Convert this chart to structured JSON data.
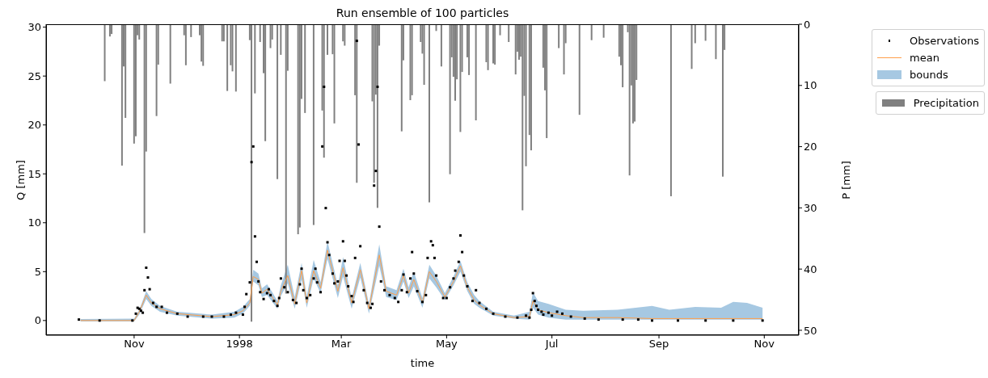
{
  "chart_data": {
    "type": "line",
    "title": "Run ensemble of 100 particles",
    "xlabel": "time",
    "ylabel": "Q [mm]",
    "y2label": "P [mm]",
    "xlim": [
      "1997-09-11",
      "1998-11-21"
    ],
    "xticks": [
      {
        "value": "1997-11-01",
        "label": "Nov"
      },
      {
        "value": "1998-01-01",
        "label": "1998"
      },
      {
        "value": "1998-03-01",
        "label": "Mar"
      },
      {
        "value": "1998-05-01",
        "label": "May"
      },
      {
        "value": "1998-07-01",
        "label": "Jul"
      },
      {
        "value": "1998-09-01",
        "label": "Sep"
      },
      {
        "value": "1998-11-01",
        "label": "Nov"
      }
    ],
    "ylim": [
      -1.5,
      30.3
    ],
    "yticks": [
      0,
      5,
      10,
      15,
      20,
      25,
      30
    ],
    "y2lim": [
      50.8,
      0
    ],
    "y2ticks": [
      0,
      10,
      20,
      30,
      40,
      50
    ],
    "grid": false,
    "legend": "right",
    "series": [
      {
        "type": "area",
        "name": "bounds",
        "color": "#a6c8e2"
      },
      {
        "name": "mean",
        "color": "#ff9f4a",
        "lower": [
          -0.1,
          -0.1,
          0.6,
          2.2,
          1.5,
          0.9,
          0.5,
          0.2,
          0.3,
          0.7,
          1.5,
          4.0,
          3.6,
          2.4,
          2.6,
          1.9,
          1.2,
          2.5,
          3.8,
          1.2,
          4.2,
          1.3,
          4.3,
          2.8,
          6.3,
          2.3,
          4.5,
          1.2,
          4.4,
          0.7,
          5.6,
          2.4,
          2.1,
          4.0,
          2.3,
          3.5,
          1.3,
          4.3,
          3.4,
          2.1,
          3.6,
          5.0,
          3.0,
          1.7,
          1.3,
          0.5,
          0.2,
          0.1,
          1.3,
          0.6,
          0.3,
          0.1,
          0.1,
          0.1,
          0.1,
          0.1,
          0.1,
          0.1,
          0.1,
          0.1,
          0.1
        ],
        "upper": [
          0.15,
          0.2,
          1.1,
          3.0,
          2.2,
          1.5,
          0.9,
          0.6,
          0.9,
          1.4,
          2.2,
          5.2,
          4.8,
          3.3,
          3.7,
          2.9,
          2.0,
          3.6,
          5.7,
          2.4,
          5.9,
          2.5,
          6.2,
          3.9,
          8.1,
          3.6,
          6.5,
          2.3,
          5.9,
          1.7,
          7.8,
          3.5,
          3.1,
          5.3,
          3.4,
          5.0,
          2.3,
          5.7,
          4.6,
          2.8,
          4.5,
          6.1,
          3.9,
          2.6,
          2.0,
          0.9,
          0.5,
          0.9,
          2.9,
          2.0,
          1.7,
          1.1,
          1.0,
          1.1,
          1.5,
          1.1,
          1.4,
          1.3,
          1.9,
          1.8,
          1.3
        ],
        "x": [
          "1997-10-01",
          "1997-11-01",
          "1997-11-04",
          "1997-11-08",
          "1997-11-11",
          "1997-11-16",
          "1997-11-26",
          "1997-12-16",
          "1997-12-29",
          "1998-01-03",
          "1998-01-07",
          "1998-01-09",
          "1998-01-12",
          "1998-01-14",
          "1998-01-17",
          "1998-01-20",
          "1998-01-23",
          "1998-01-25",
          "1998-01-29",
          "1998-02-02",
          "1998-02-06",
          "1998-02-09",
          "1998-02-13",
          "1998-02-17",
          "1998-02-21",
          "1998-02-27",
          "1998-03-02",
          "1998-03-07",
          "1998-03-12",
          "1998-03-17",
          "1998-03-23",
          "1998-03-27",
          "1998-04-02",
          "1998-04-06",
          "1998-04-09",
          "1998-04-12",
          "1998-04-17",
          "1998-04-21",
          "1998-04-25",
          "1998-04-30",
          "1998-05-05",
          "1998-05-09",
          "1998-05-13",
          "1998-05-17",
          "1998-05-20",
          "1998-05-28",
          "1998-06-09",
          "1998-06-18",
          "1998-06-20",
          "1998-06-23",
          "1998-06-29",
          "1998-07-09",
          "1998-07-19",
          "1998-08-08",
          "1998-08-28",
          "1998-09-07",
          "1998-09-22",
          "1998-10-07",
          "1998-10-14",
          "1998-10-22",
          "1998-10-31"
        ],
        "values": [
          0.0,
          0.0,
          0.9,
          2.6,
          1.8,
          1.2,
          0.7,
          0.4,
          0.6,
          1.0,
          1.8,
          4.5,
          4.2,
          2.8,
          3.2,
          2.4,
          1.6,
          3.0,
          4.6,
          1.7,
          5.1,
          1.8,
          5.1,
          3.3,
          7.2,
          3.0,
          5.4,
          1.8,
          5.2,
          1.2,
          6.7,
          3.0,
          2.6,
          4.6,
          2.8,
          4.2,
          1.8,
          5.0,
          4.0,
          2.4,
          4.0,
          5.6,
          3.4,
          2.1,
          1.6,
          0.7,
          0.3,
          0.4,
          2.0,
          1.1,
          0.8,
          0.5,
          0.3,
          0.3,
          0.2,
          0.2,
          0.2,
          0.2,
          0.2,
          0.2,
          0.2
        ]
      },
      {
        "type": "scatter",
        "name": "Observations",
        "color": "#000000",
        "marker": "square",
        "x": [
          "1997-09-30",
          "1997-10-12",
          "1997-10-31",
          "1997-11-02",
          "1997-11-03",
          "1997-11-04",
          "1997-11-05",
          "1997-11-06",
          "1997-11-07",
          "1997-11-08",
          "1997-11-09",
          "1997-11-10",
          "1997-11-12",
          "1997-11-14",
          "1997-11-17",
          "1997-11-20",
          "1997-11-26",
          "1997-12-02",
          "1997-12-11",
          "1997-12-16",
          "1997-12-23",
          "1997-12-27",
          "1997-12-30",
          "1998-01-03",
          "1998-01-04",
          "1998-01-05",
          "1998-01-07",
          "1998-01-08",
          "1998-01-09",
          "1998-01-10",
          "1998-01-11",
          "1998-01-12",
          "1998-01-13",
          "1998-01-15",
          "1998-01-17",
          "1998-01-18",
          "1998-01-19",
          "1998-01-21",
          "1998-01-23",
          "1998-01-24",
          "1998-01-25",
          "1998-01-27",
          "1998-01-29",
          "1998-02-01",
          "1998-02-03",
          "1998-02-05",
          "1998-02-06",
          "1998-02-07",
          "1998-02-09",
          "1998-02-11",
          "1998-02-13",
          "1998-02-14",
          "1998-02-15",
          "1998-02-17",
          "1998-02-18",
          "1998-02-19",
          "1998-02-20",
          "1998-02-21",
          "1998-02-22",
          "1998-02-24",
          "1998-02-25",
          "1998-02-27",
          "1998-02-28",
          "1998-03-02",
          "1998-03-03",
          "1998-03-04",
          "1998-03-05",
          "1998-03-07",
          "1998-03-08",
          "1998-03-09",
          "1998-03-10",
          "1998-03-11",
          "1998-03-12",
          "1998-03-14",
          "1998-03-16",
          "1998-03-18",
          "1998-03-19",
          "1998-03-20",
          "1998-03-21",
          "1998-03-22",
          "1998-03-23",
          "1998-03-24",
          "1998-03-26",
          "1998-03-29",
          "1998-04-01",
          "1998-04-03",
          "1998-04-05",
          "1998-04-06",
          "1998-04-08",
          "1998-04-10",
          "1998-04-11",
          "1998-04-12",
          "1998-04-14",
          "1998-04-17",
          "1998-04-19",
          "1998-04-20",
          "1998-04-22",
          "1998-04-23",
          "1998-04-24",
          "1998-04-25",
          "1998-04-29",
          "1998-05-01",
          "1998-05-03",
          "1998-05-05",
          "1998-05-06",
          "1998-05-08",
          "1998-05-09",
          "1998-05-10",
          "1998-05-11",
          "1998-05-13",
          "1998-05-16",
          "1998-05-18",
          "1998-05-20",
          "1998-05-24",
          "1998-05-28",
          "1998-06-04",
          "1998-06-11",
          "1998-06-16",
          "1998-06-18",
          "1998-06-19",
          "1998-06-20",
          "1998-06-21",
          "1998-06-22",
          "1998-06-23",
          "1998-06-25",
          "1998-06-26",
          "1998-06-29",
          "1998-07-01",
          "1998-07-04",
          "1998-07-07",
          "1998-07-12",
          "1998-07-20",
          "1998-07-28",
          "1998-08-11",
          "1998-08-20",
          "1998-08-28",
          "1998-09-12",
          "1998-09-28",
          "1998-10-14",
          "1998-10-31"
        ],
        "values": [
          0.1,
          0.0,
          0.0,
          0.7,
          1.3,
          1.2,
          1.0,
          0.8,
          3.1,
          5.4,
          4.4,
          3.2,
          1.8,
          1.4,
          1.4,
          0.8,
          0.7,
          0.4,
          0.4,
          0.4,
          0.4,
          0.6,
          0.8,
          0.6,
          1.4,
          2.7,
          3.9,
          16.2,
          17.8,
          8.6,
          6.0,
          4.0,
          2.9,
          2.2,
          2.8,
          3.2,
          2.6,
          2.0,
          1.5,
          2.3,
          4.3,
          3.4,
          2.9,
          2.1,
          1.8,
          3.7,
          5.3,
          3.1,
          2.3,
          2.6,
          4.3,
          5.3,
          3.9,
          2.9,
          17.8,
          23.9,
          11.5,
          8.0,
          6.7,
          4.8,
          3.8,
          4.0,
          6.1,
          8.1,
          6.1,
          4.6,
          3.5,
          2.5,
          1.9,
          6.4,
          28.6,
          18.0,
          7.6,
          3.1,
          1.8,
          1.3,
          1.7,
          13.8,
          15.3,
          23.9,
          9.6,
          4.0,
          3.1,
          2.6,
          2.3,
          1.9,
          3.1,
          4.7,
          2.9,
          4.3,
          7.0,
          4.8,
          3.0,
          1.9,
          2.6,
          6.4,
          8.1,
          7.7,
          6.4,
          4.6,
          2.3,
          2.3,
          3.4,
          4.3,
          5.1,
          6.0,
          8.7,
          7.0,
          4.6,
          3.5,
          2.0,
          3.1,
          1.8,
          1.2,
          0.7,
          0.4,
          0.3,
          0.5,
          0.3,
          1.1,
          2.8,
          2.0,
          1.5,
          1.1,
          0.9,
          0.6,
          0.8,
          0.5,
          0.9,
          0.7,
          0.4,
          0.2,
          0.1,
          0.1,
          0.1,
          0.0,
          0.0,
          0.0,
          0.0,
          0.0
        ]
      },
      {
        "type": "bar",
        "name": "Precipitation",
        "color": "#808080",
        "axis": "y2",
        "x": [
          "1997-10-15",
          "1997-10-18",
          "1997-10-19",
          "1997-10-25",
          "1997-10-26",
          "1997-10-27",
          "1997-11-01",
          "1997-11-02",
          "1997-11-03",
          "1997-11-04",
          "1997-11-07",
          "1997-11-08",
          "1997-11-14",
          "1997-11-15",
          "1997-11-22",
          "1997-11-30",
          "1997-12-01",
          "1997-12-04",
          "1997-12-09",
          "1997-12-10",
          "1997-12-11",
          "1997-12-22",
          "1997-12-23",
          "1997-12-25",
          "1997-12-27",
          "1997-12-28",
          "1997-12-30",
          "1998-01-07",
          "1998-01-08",
          "1998-01-10",
          "1998-01-13",
          "1998-01-15",
          "1998-01-16",
          "1998-01-19",
          "1998-01-20",
          "1998-01-23",
          "1998-01-25",
          "1998-01-28",
          "1998-01-29",
          "1998-02-04",
          "1998-02-05",
          "1998-02-06",
          "1998-02-08",
          "1998-02-13",
          "1998-02-18",
          "1998-02-19",
          "1998-02-21",
          "1998-02-24",
          "1998-02-25",
          "1998-03-02",
          "1998-03-03",
          "1998-03-09",
          "1998-03-10",
          "1998-03-19",
          "1998-03-20",
          "1998-03-21",
          "1998-03-22",
          "1998-03-23",
          "1998-04-05",
          "1998-04-06",
          "1998-04-10",
          "1998-04-11",
          "1998-04-16",
          "1998-04-17",
          "1998-04-18",
          "1998-04-21",
          "1998-04-25",
          "1998-04-28",
          "1998-05-03",
          "1998-05-04",
          "1998-05-05",
          "1998-05-06",
          "1998-05-07",
          "1998-05-09",
          "1998-05-10",
          "1998-05-13",
          "1998-05-14",
          "1998-05-18",
          "1998-05-24",
          "1998-05-25",
          "1998-05-28",
          "1998-05-29",
          "1998-06-01",
          "1998-06-06",
          "1998-06-10",
          "1998-06-11",
          "1998-06-12",
          "1998-06-13",
          "1998-06-14",
          "1998-06-15",
          "1998-06-16",
          "1998-06-18",
          "1998-06-19",
          "1998-06-26",
          "1998-06-27",
          "1998-06-28",
          "1998-07-05",
          "1998-07-08",
          "1998-07-09",
          "1998-07-17",
          "1998-07-24",
          "1998-07-31",
          "1998-08-09",
          "1998-08-10",
          "1998-08-11",
          "1998-08-14",
          "1998-08-15",
          "1998-08-16",
          "1998-08-17",
          "1998-08-18",
          "1998-08-19",
          "1998-09-08",
          "1998-09-20",
          "1998-09-22",
          "1998-09-28",
          "1998-10-04",
          "1998-10-08",
          "1998-10-09"
        ],
        "values": [
          9.3,
          2.0,
          1.6,
          23.1,
          6.9,
          15.3,
          19.5,
          18.3,
          1.8,
          2.5,
          34.1,
          20.8,
          15.0,
          6.6,
          9.7,
          1.8,
          6.7,
          2.1,
          1.8,
          6.1,
          6.8,
          2.8,
          2.8,
          10.9,
          6.7,
          7.7,
          11.0,
          2.6,
          48.6,
          11.3,
          2.9,
          8.0,
          19.1,
          3.9,
          2.5,
          25.3,
          5.0,
          44.0,
          7.6,
          34.3,
          33.2,
          12.2,
          14.5,
          32.8,
          14.1,
          21.8,
          5.0,
          4.9,
          16.2,
          2.8,
          3.5,
          11.6,
          25.9,
          12.6,
          25.9,
          11.5,
          30.0,
          3.5,
          17.5,
          5.9,
          12.4,
          11.6,
          2.9,
          4.8,
          9.9,
          29.1,
          1.1,
          6.9,
          24.5,
          5.4,
          8.6,
          12.5,
          9.0,
          17.6,
          7.8,
          5.4,
          8.3,
          15.7,
          6.2,
          7.5,
          6.4,
          6.6,
          1.8,
          2.9,
          8.2,
          4.5,
          5.8,
          5.3,
          30.4,
          11.7,
          23.2,
          18.1,
          20.6,
          7.1,
          10.8,
          18.6,
          3.9,
          8.2,
          3.1,
          14.8,
          2.6,
          2.2,
          5.3,
          6.7,
          10.3,
          1.3,
          24.7,
          10.0,
          16.2,
          15.9,
          9.1,
          28.1,
          7.3,
          3.1,
          2.7,
          5.7,
          24.9,
          4.2
        ]
      }
    ]
  }
}
